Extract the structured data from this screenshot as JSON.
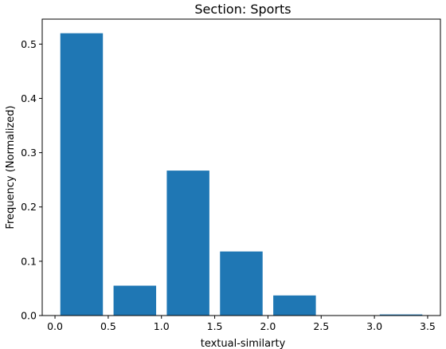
{
  "chart_data": {
    "type": "bar",
    "title": "Section: Sports",
    "xlabel": "textual-similarty",
    "ylabel": "Frequency (Normalized)",
    "bar_color": "#1f77b4",
    "bars": [
      {
        "x_start": 0.05,
        "x_end": 0.45,
        "value": 0.52
      },
      {
        "x_start": 0.55,
        "x_end": 0.95,
        "value": 0.055
      },
      {
        "x_start": 1.05,
        "x_end": 1.45,
        "value": 0.267
      },
      {
        "x_start": 1.55,
        "x_end": 1.95,
        "value": 0.118
      },
      {
        "x_start": 2.05,
        "x_end": 2.45,
        "value": 0.037
      },
      {
        "x_start": 2.55,
        "x_end": 2.95,
        "value": 0.0
      },
      {
        "x_start": 3.05,
        "x_end": 3.45,
        "value": 0.002
      }
    ],
    "xlim": [
      -0.12,
      3.62
    ],
    "ylim": [
      0,
      0.546
    ],
    "xticks": [
      0.0,
      0.5,
      1.0,
      1.5,
      2.0,
      2.5,
      3.0,
      3.5
    ],
    "xtick_labels": [
      "0.0",
      "0.5",
      "1.0",
      "1.5",
      "2.0",
      "2.5",
      "3.0",
      "3.5"
    ],
    "yticks": [
      0.0,
      0.1,
      0.2,
      0.3,
      0.4,
      0.5
    ],
    "ytick_labels": [
      "0.0",
      "0.1",
      "0.2",
      "0.3",
      "0.4",
      "0.5"
    ],
    "grid": false,
    "legend": "none"
  }
}
